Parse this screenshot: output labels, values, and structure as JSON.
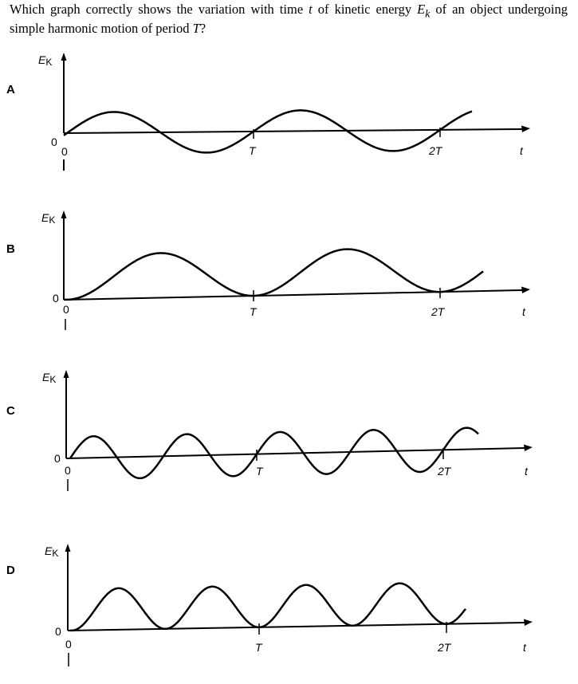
{
  "question": {
    "part1": "Which graph correctly shows the variation with time ",
    "var_t": "t",
    "part2": " of kinetic energy ",
    "var_E": "E",
    "var_k": "k",
    "part3": " of an object undergoing simple harmonic motion of period ",
    "var_T": "T",
    "part4": "?"
  },
  "options": [
    {
      "letter": "A",
      "ylabel": "E",
      "ylabel_sub": "K",
      "zero": "0",
      "origin": "0",
      "tick1": "T",
      "tick2": "2T",
      "xlabel": "t",
      "curve": "sine-crossing-axis",
      "cycles_per_T": 1
    },
    {
      "letter": "B",
      "ylabel": "E",
      "ylabel_sub": "K",
      "zero": "0",
      "origin": "0",
      "tick1": "T",
      "tick2": "2T",
      "xlabel": "t",
      "curve": "sin-squared",
      "cycles_per_T": 1
    },
    {
      "letter": "C",
      "ylabel": "E",
      "ylabel_sub": "K",
      "zero": "0",
      "origin": "0",
      "tick1": "T",
      "tick2": "2T",
      "xlabel": "t",
      "curve": "sine-crossing-axis",
      "cycles_per_T": 2
    },
    {
      "letter": "D",
      "ylabel": "E",
      "ylabel_sub": "K",
      "zero": "0",
      "origin": "0",
      "tick1": "T",
      "tick2": "2T",
      "xlabel": "t",
      "curve": "sin-squared",
      "cycles_per_T": 2
    }
  ]
}
